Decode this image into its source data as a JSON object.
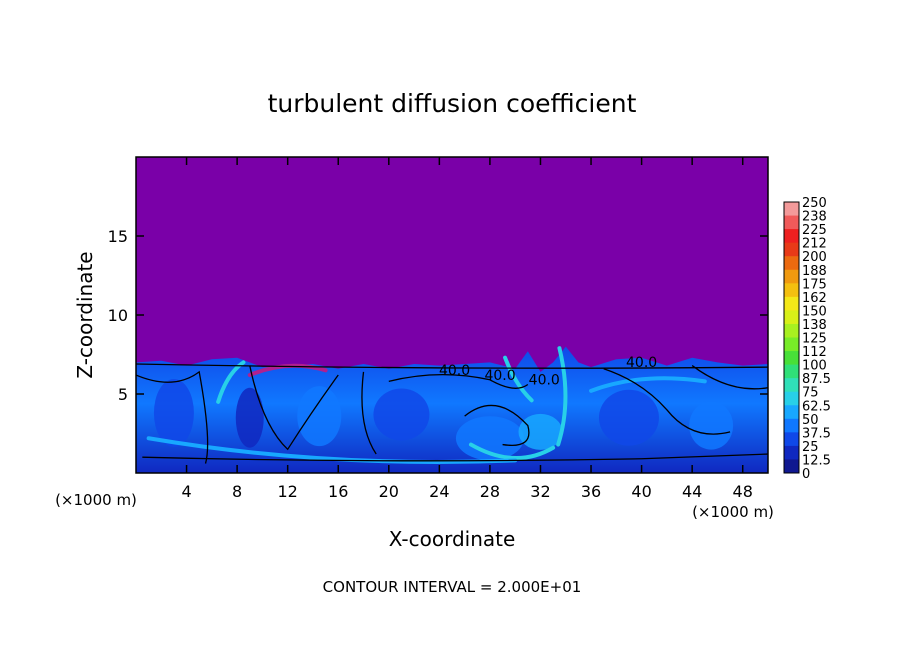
{
  "chart_data": {
    "type": "heatmap",
    "title": "turbulent diffusion coefficient",
    "xlabel": "X-coordinate",
    "ylabel": "Z-coordinate",
    "x_unit_left": "(×1000 m)",
    "x_unit_right": "(×1000 m)",
    "xlim": [
      0,
      50
    ],
    "ylim": [
      0,
      20
    ],
    "x_ticks": [
      "4",
      "8",
      "12",
      "16",
      "20",
      "24",
      "28",
      "32",
      "36",
      "40",
      "44",
      "48"
    ],
    "y_ticks": [
      "5",
      "10",
      "15"
    ],
    "contour_labels": [
      "40.0",
      "40.0",
      "40.0",
      "40.0"
    ],
    "colorbar": {
      "labels": [
        "250",
        "238",
        "225",
        "212",
        "200",
        "188",
        "175",
        "162",
        "150",
        "138",
        "125",
        "112",
        "100",
        "87.5",
        "75",
        "62.5",
        "50",
        "37.5",
        "25",
        "12.5",
        "0"
      ],
      "colors": [
        "#f39a9a",
        "#f05a5a",
        "#ee2020",
        "#e83a18",
        "#ec6a10",
        "#f09a10",
        "#f4c010",
        "#f4e818",
        "#d8f018",
        "#a8f020",
        "#78ec28",
        "#48e038",
        "#30e078",
        "#30e0b8",
        "#28d0e8",
        "#18a8ff",
        "#1078ff",
        "#1048e8",
        "#1028c0",
        "#101890",
        "#7a00a8"
      ]
    },
    "background_value_color": "#7a00a8",
    "footer": "CONTOUR INTERVAL = 2.000E+01"
  }
}
